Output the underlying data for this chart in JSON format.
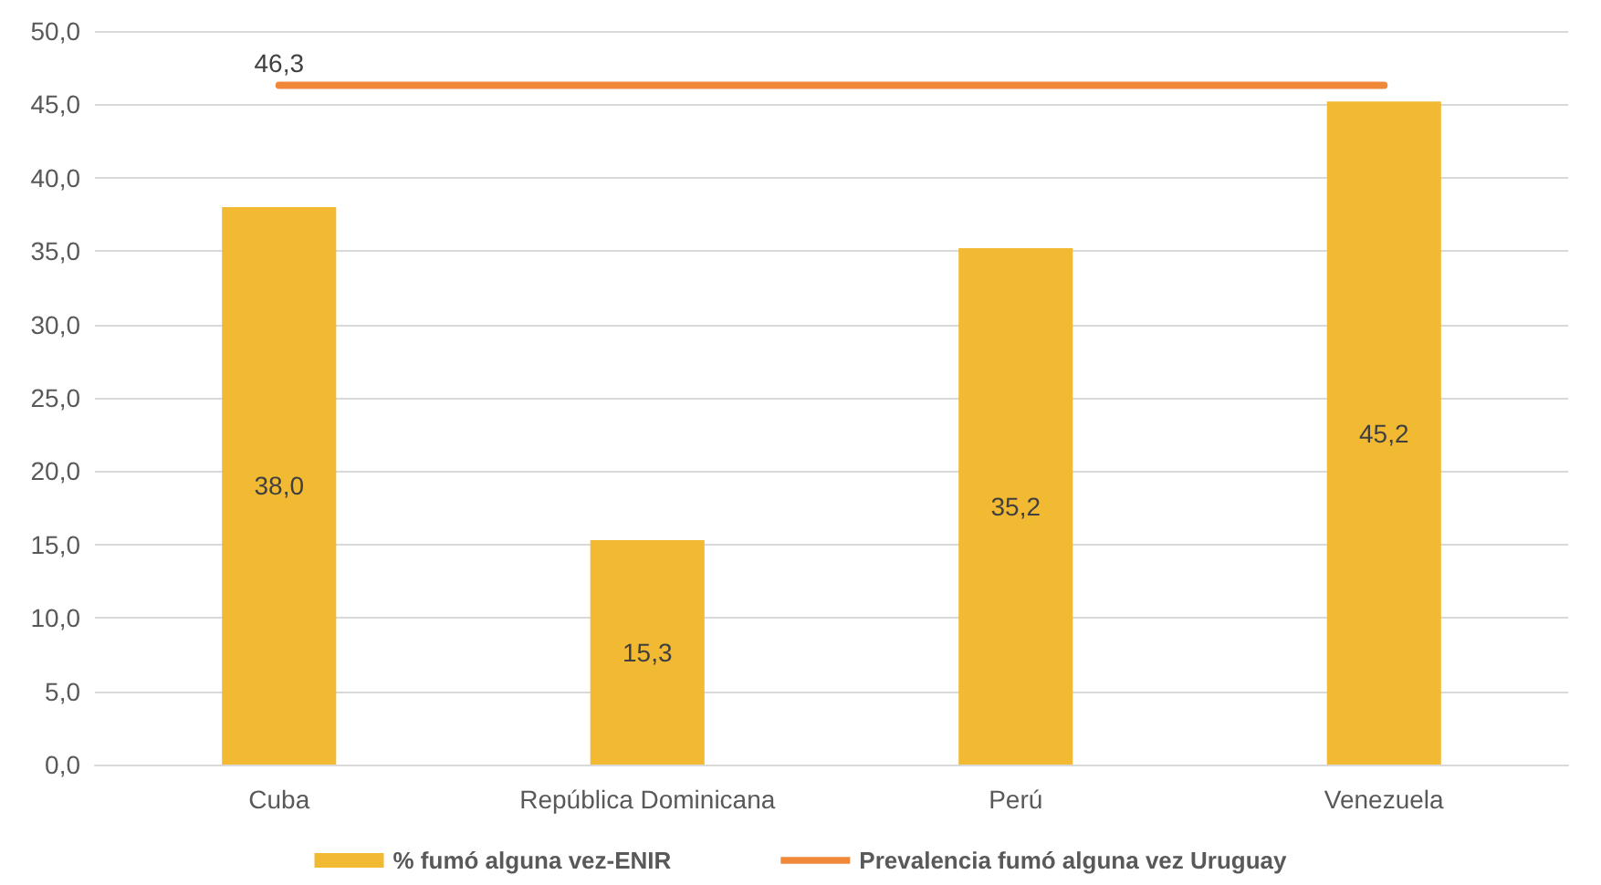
{
  "chart_data": {
    "type": "bar",
    "categories": [
      "Cuba",
      "República Dominicana",
      "Perú",
      "Venezuela"
    ],
    "series": [
      {
        "name": "% fumó alguna vez-ENIR",
        "color": "#f2b933",
        "values": [
          38.0,
          15.3,
          35.2,
          45.2
        ],
        "value_labels": [
          "38,0",
          "15,3",
          "35,2",
          "45,2"
        ]
      },
      {
        "name": "Prevalencia fumó alguna vez Uruguay",
        "type": "line",
        "color": "#f0883a",
        "values": [
          46.3,
          46.3,
          46.3,
          46.3
        ],
        "value_labels": [
          "46,3",
          null,
          null,
          null
        ]
      }
    ],
    "ylim": [
      0,
      50
    ],
    "yticks": [
      {
        "value": 0,
        "label": "0,0"
      },
      {
        "value": 5,
        "label": "5,0"
      },
      {
        "value": 10,
        "label": "10,0"
      },
      {
        "value": 15,
        "label": "15,0"
      },
      {
        "value": 20,
        "label": "20,0"
      },
      {
        "value": 25,
        "label": "25,0"
      },
      {
        "value": 30,
        "label": "30,0"
      },
      {
        "value": 35,
        "label": "35,0"
      },
      {
        "value": 40,
        "label": "40,0"
      },
      {
        "value": 45,
        "label": "45,0"
      },
      {
        "value": 50,
        "label": "50,0"
      }
    ],
    "grid": "y",
    "legend": "bottom",
    "marker": "none",
    "line_style": "solid"
  }
}
